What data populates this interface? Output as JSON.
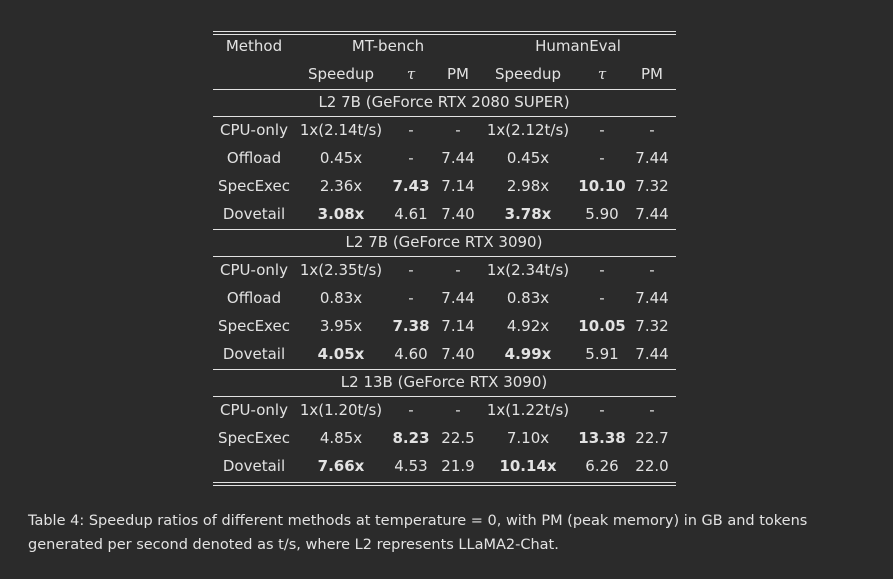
{
  "table": {
    "header": {
      "row1": [
        "Method",
        "MT-bench",
        "HumanEval"
      ],
      "row2": [
        "Speedup",
        "τ",
        "PM",
        "Speedup",
        "τ",
        "PM"
      ]
    },
    "groups": [
      {
        "title": "L2 7B (GeForce RTX 2080 SUPER)",
        "rows": [
          [
            "CPU-only",
            "1x(2.14t/s)",
            "-",
            "-",
            "1x(2.12t/s)",
            "-",
            "-"
          ],
          [
            "Offload",
            "0.45x",
            "-",
            "7.44",
            "0.45x",
            "-",
            "7.44"
          ],
          [
            "SpecExec",
            "2.36x",
            "7.43",
            "7.14",
            "2.98x",
            "10.10",
            "7.32"
          ],
          [
            "Dovetail",
            "3.08x",
            "4.61",
            "7.40",
            "3.78x",
            "5.90",
            "7.44"
          ]
        ]
      },
      {
        "title": "L2 7B (GeForce RTX 3090)",
        "rows": [
          [
            "CPU-only",
            "1x(2.35t/s)",
            "-",
            "-",
            "1x(2.34t/s)",
            "-",
            "-"
          ],
          [
            "Offload",
            "0.83x",
            "-",
            "7.44",
            "0.83x",
            "-",
            "7.44"
          ],
          [
            "SpecExec",
            "3.95x",
            "7.38",
            "7.14",
            "4.92x",
            "10.05",
            "7.32"
          ],
          [
            "Dovetail",
            "4.05x",
            "4.60",
            "7.40",
            "4.99x",
            "5.91",
            "7.44"
          ]
        ]
      },
      {
        "title": "L2 13B (GeForce RTX 3090)",
        "rows": [
          [
            "CPU-only",
            "1x(1.20t/s)",
            "-",
            "-",
            "1x(1.22t/s)",
            "-",
            "-"
          ],
          [
            "SpecExec",
            "4.85x",
            "8.23",
            "22.5",
            "7.10x",
            "13.38",
            "22.7"
          ],
          [
            "Dovetail",
            "7.66x",
            "4.53",
            "21.9",
            "10.14x",
            "6.26",
            "22.0"
          ]
        ]
      }
    ],
    "caption": "Table 4: Speedup ratios of different methods at temperature = 0, with PM (peak memory) in GB and tokens generated per second denoted as t/s, where L2 represents LLaMA2-Chat."
  }
}
